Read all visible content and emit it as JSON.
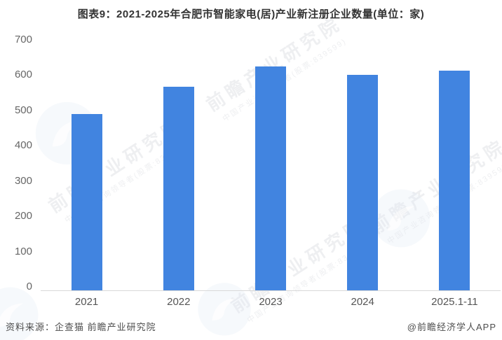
{
  "header": {
    "title": "图表9：2021-2025年合肥市智能家电(居)产业新注册企业数量(单位：家)"
  },
  "chart_data": {
    "type": "bar",
    "title": "图表9：2021-2025年合肥市智能家电(居)产业新注册企业数量(单位：家)",
    "categories": [
      "2021",
      "2022",
      "2023",
      "2024",
      "2025.1-11"
    ],
    "values": [
      500,
      578,
      634,
      610,
      622
    ],
    "xlabel": "",
    "ylabel": "",
    "unit": "家",
    "ylim": [
      0,
      700
    ],
    "yticks": [
      0,
      100,
      200,
      300,
      400,
      500,
      600,
      700
    ],
    "grid": false,
    "legend": "none",
    "bar_color": "#4184e0"
  },
  "watermark": {
    "brand": "前瞻产业研究院",
    "tagline": "中国产业咨询领导者(股票:839599)"
  },
  "footer": {
    "source": "资料来源：企查猫 前瞻产业研究院",
    "credit": "@前瞻经济学人APP"
  },
  "colors": {
    "bar": "#4184e0",
    "axis_line": "#d9d9d9",
    "title_text": "#333333",
    "tick_label": "#666666",
    "footer_text": "#4d4d4d"
  }
}
